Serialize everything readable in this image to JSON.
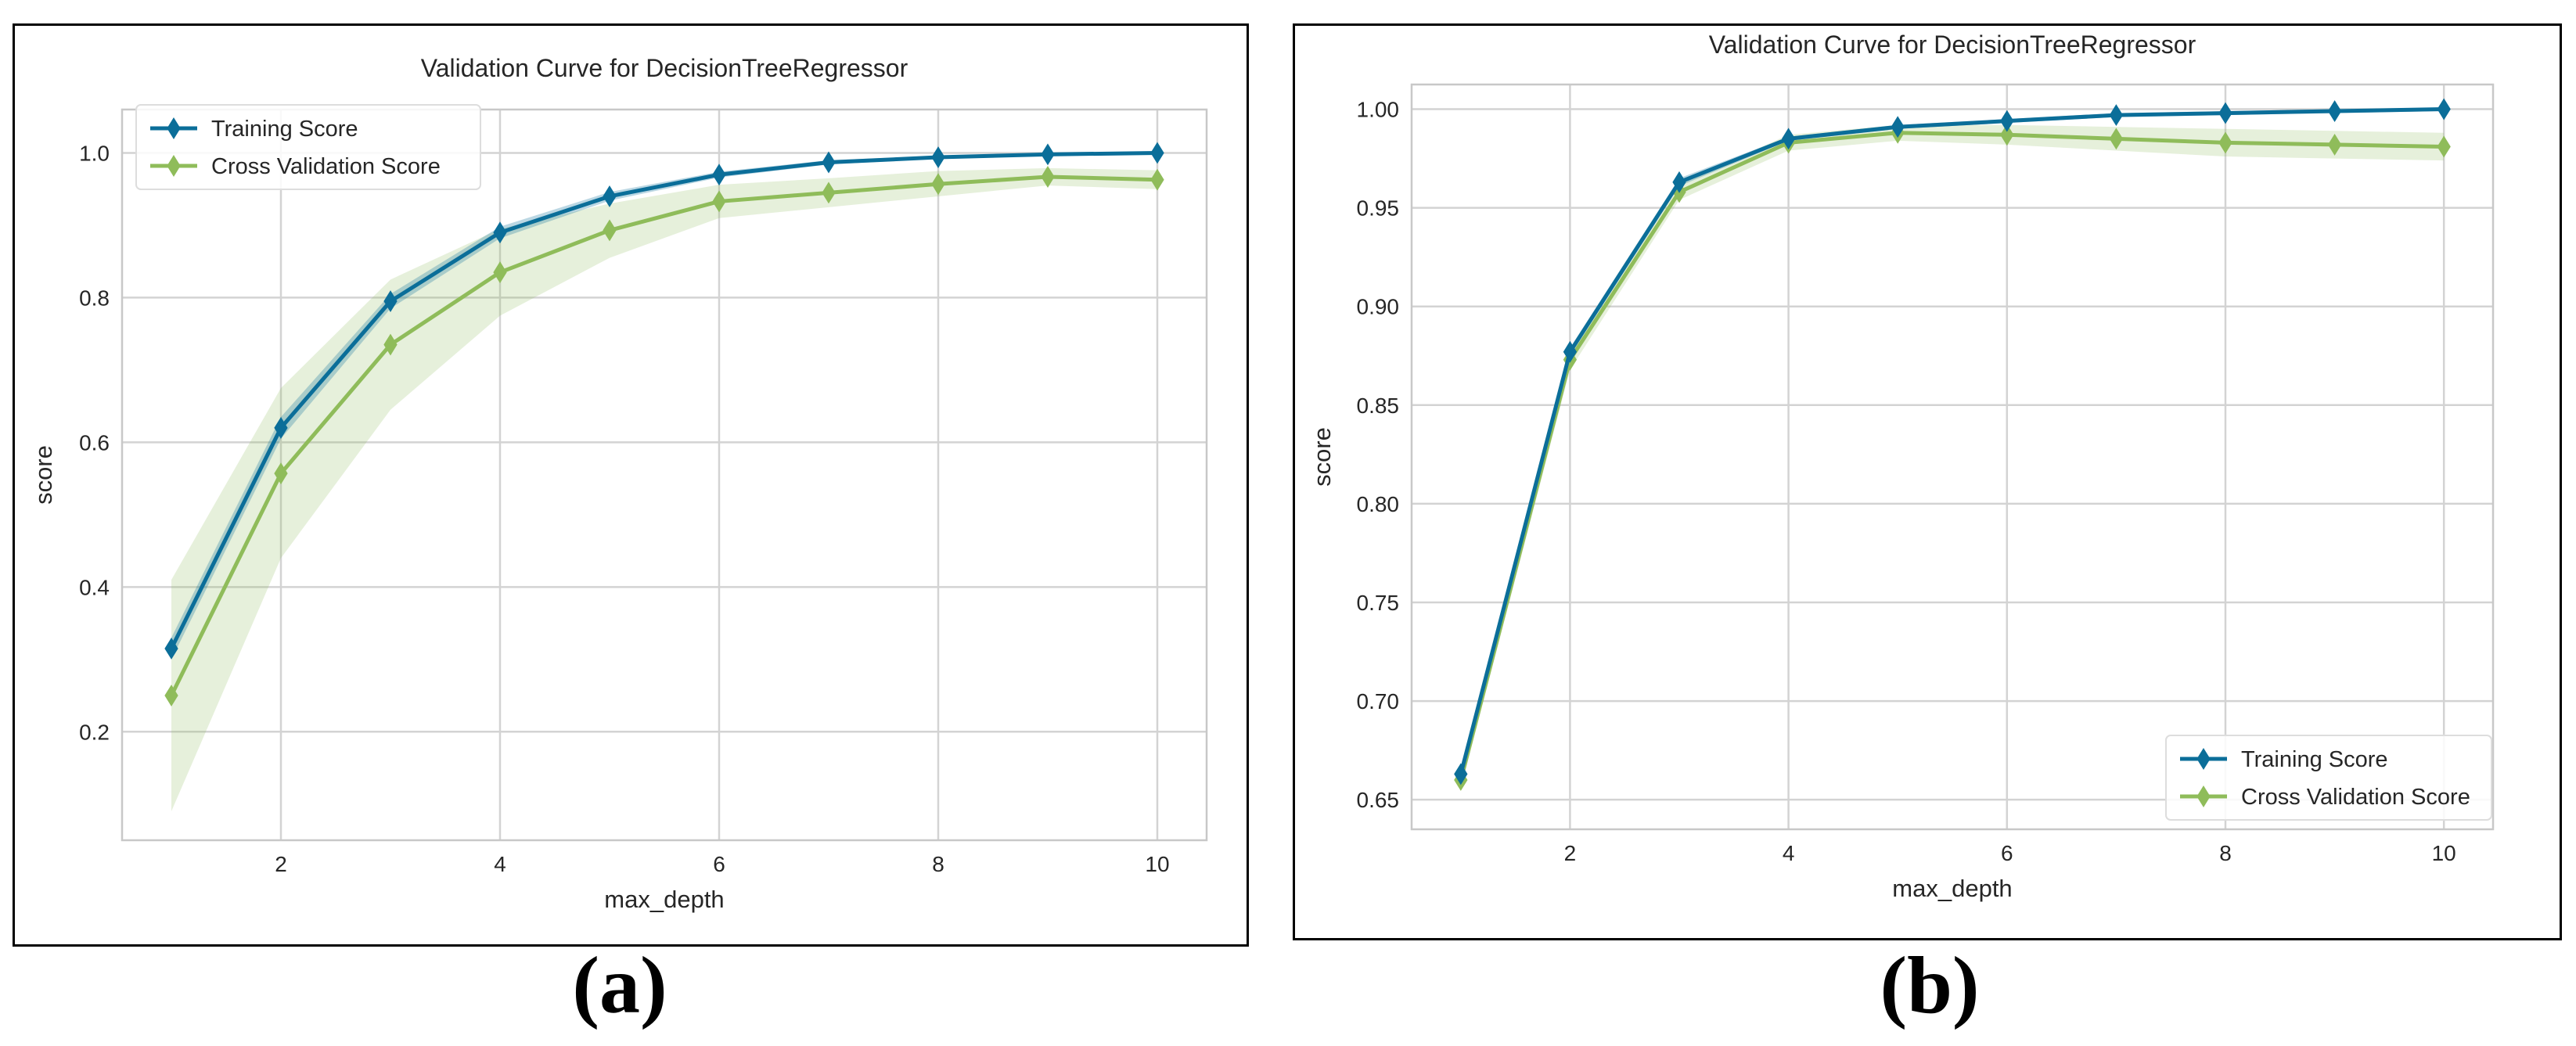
{
  "chart_data": [
    {
      "panel": "a",
      "type": "line",
      "title": "Validation Curve for DecisionTreeRegressor",
      "xlabel": "max_depth",
      "ylabel": "score",
      "xlim": [
        0.55,
        10.45
      ],
      "ylim": [
        0.05,
        1.06
      ],
      "xticks": [
        2,
        4,
        6,
        8,
        10
      ],
      "yticks": [
        0.2,
        0.4,
        0.6,
        0.8,
        1.0
      ],
      "ytick_labels": [
        "0.2",
        "0.4",
        "0.6",
        "0.8",
        "1.0"
      ],
      "grid": true,
      "legend_position": "top-left",
      "x": [
        1,
        2,
        3,
        4,
        5,
        6,
        7,
        8,
        9,
        10
      ],
      "series": [
        {
          "name": "Training Score",
          "color": "#0b6e99",
          "values": [
            0.315,
            0.62,
            0.795,
            0.89,
            0.94,
            0.97,
            0.987,
            0.994,
            0.998,
            1.0
          ],
          "band": [
            [
              0.3,
              0.33
            ],
            [
              0.605,
              0.635
            ],
            [
              0.785,
              0.805
            ],
            [
              0.882,
              0.898
            ],
            [
              0.934,
              0.946
            ],
            [
              0.966,
              0.974
            ],
            [
              0.984,
              0.99
            ],
            [
              0.992,
              0.996
            ],
            [
              0.997,
              0.999
            ],
            [
              0.999,
              1.0
            ]
          ]
        },
        {
          "name": "Cross Validation Score",
          "color": "#8fbc5a",
          "values": [
            0.25,
            0.557,
            0.735,
            0.835,
            0.893,
            0.933,
            0.945,
            0.957,
            0.967,
            0.963
          ],
          "band": [
            [
              0.09,
              0.41
            ],
            [
              0.44,
              0.675
            ],
            [
              0.645,
              0.825
            ],
            [
              0.775,
              0.895
            ],
            [
              0.855,
              0.93
            ],
            [
              0.91,
              0.956
            ],
            [
              0.925,
              0.965
            ],
            [
              0.94,
              0.975
            ],
            [
              0.955,
              0.979
            ],
            [
              0.95,
              0.976
            ]
          ]
        }
      ]
    },
    {
      "panel": "b",
      "type": "line",
      "title": "Validation Curve for DecisionTreeRegressor",
      "xlabel": "max_depth",
      "ylabel": "score",
      "xlim": [
        0.55,
        10.45
      ],
      "ylim": [
        0.635,
        1.0125
      ],
      "xticks": [
        2,
        4,
        6,
        8,
        10
      ],
      "yticks": [
        0.65,
        0.7,
        0.75,
        0.8,
        0.85,
        0.9,
        0.95,
        1.0
      ],
      "ytick_labels": [
        "0.65",
        "0.70",
        "0.75",
        "0.80",
        "0.85",
        "0.90",
        "0.95",
        "1.00"
      ],
      "grid": true,
      "legend_position": "bottom-right",
      "x": [
        1,
        2,
        3,
        4,
        5,
        6,
        7,
        8,
        9,
        10
      ],
      "series": [
        {
          "name": "Training Score",
          "color": "#0b6e99",
          "values": [
            0.663,
            0.877,
            0.963,
            0.985,
            0.991,
            0.994,
            0.997,
            0.998,
            0.999,
            1.0
          ],
          "band": [
            [
              0.661,
              0.665
            ],
            [
              0.875,
              0.879
            ],
            [
              0.961,
              0.965
            ],
            [
              0.984,
              0.986
            ],
            [
              0.99,
              0.992
            ],
            [
              0.993,
              0.995
            ],
            [
              0.996,
              0.998
            ],
            [
              0.997,
              0.999
            ],
            [
              0.998,
              1.0
            ],
            [
              0.999,
              1.0
            ]
          ]
        },
        {
          "name": "Cross Validation Score",
          "color": "#8fbc5a",
          "values": [
            0.66,
            0.873,
            0.958,
            0.983,
            0.988,
            0.987,
            0.985,
            0.983,
            0.982,
            0.981
          ],
          "band": [
            [
              0.656,
              0.664
            ],
            [
              0.868,
              0.878
            ],
            [
              0.954,
              0.962
            ],
            [
              0.979,
              0.987
            ],
            [
              0.984,
              0.992
            ],
            [
              0.982,
              0.992
            ],
            [
              0.979,
              0.991
            ],
            [
              0.976,
              0.99
            ],
            [
              0.975,
              0.989
            ],
            [
              0.974,
              0.988
            ]
          ]
        }
      ]
    }
  ],
  "captions": {
    "a": "(a)",
    "b": "(b)"
  }
}
